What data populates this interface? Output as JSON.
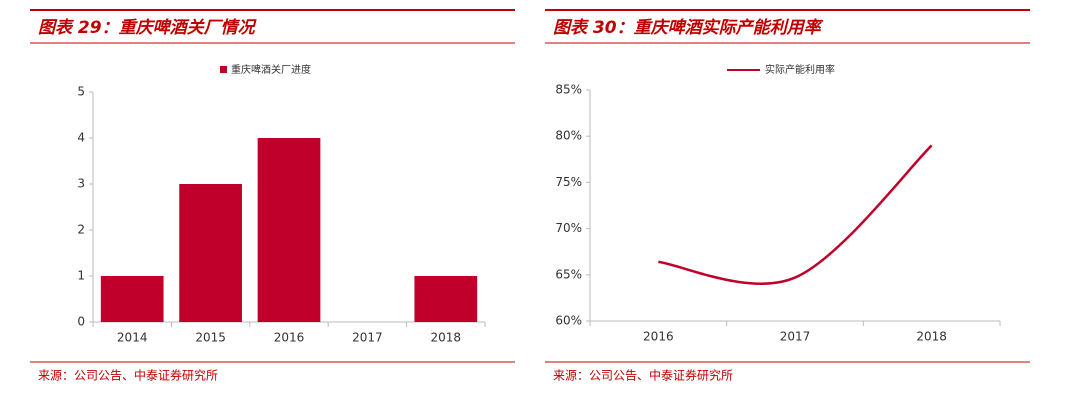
{
  "chart_data": [
    {
      "type": "bar",
      "title": "图表 29：重庆啤酒关厂情况",
      "source": "来源：公司公告、中泰证券研究所",
      "categories": [
        "2014",
        "2015",
        "2016",
        "2017",
        "2018"
      ],
      "series": [
        {
          "name": "重庆啤酒关厂进度",
          "color": "#c0002a",
          "values": [
            1,
            3,
            4,
            0,
            1
          ]
        }
      ],
      "ylim": [
        0,
        5
      ],
      "yticks": [
        0,
        1,
        2,
        3,
        4,
        5
      ],
      "grid": false,
      "legend": "top"
    },
    {
      "type": "line",
      "title": "图表 30：重庆啤酒实际产能利用率",
      "source": "来源：公司公告、中泰证券研究所",
      "categories": [
        "2016",
        "2017",
        "2018"
      ],
      "series": [
        {
          "name": "实际产能利用率",
          "color": "#c0002a",
          "values": [
            66.4,
            64.7,
            79
          ]
        }
      ],
      "ylim": [
        60,
        85
      ],
      "yticks": [
        {
          "value": 60,
          "label": "60%"
        },
        {
          "value": 65,
          "label": "65%"
        },
        {
          "value": 70,
          "label": "70%"
        },
        {
          "value": 75,
          "label": "75%"
        },
        {
          "value": 80,
          "label": "80%"
        },
        {
          "value": 85,
          "label": "85%"
        }
      ],
      "grid": false,
      "legend": "top"
    }
  ]
}
